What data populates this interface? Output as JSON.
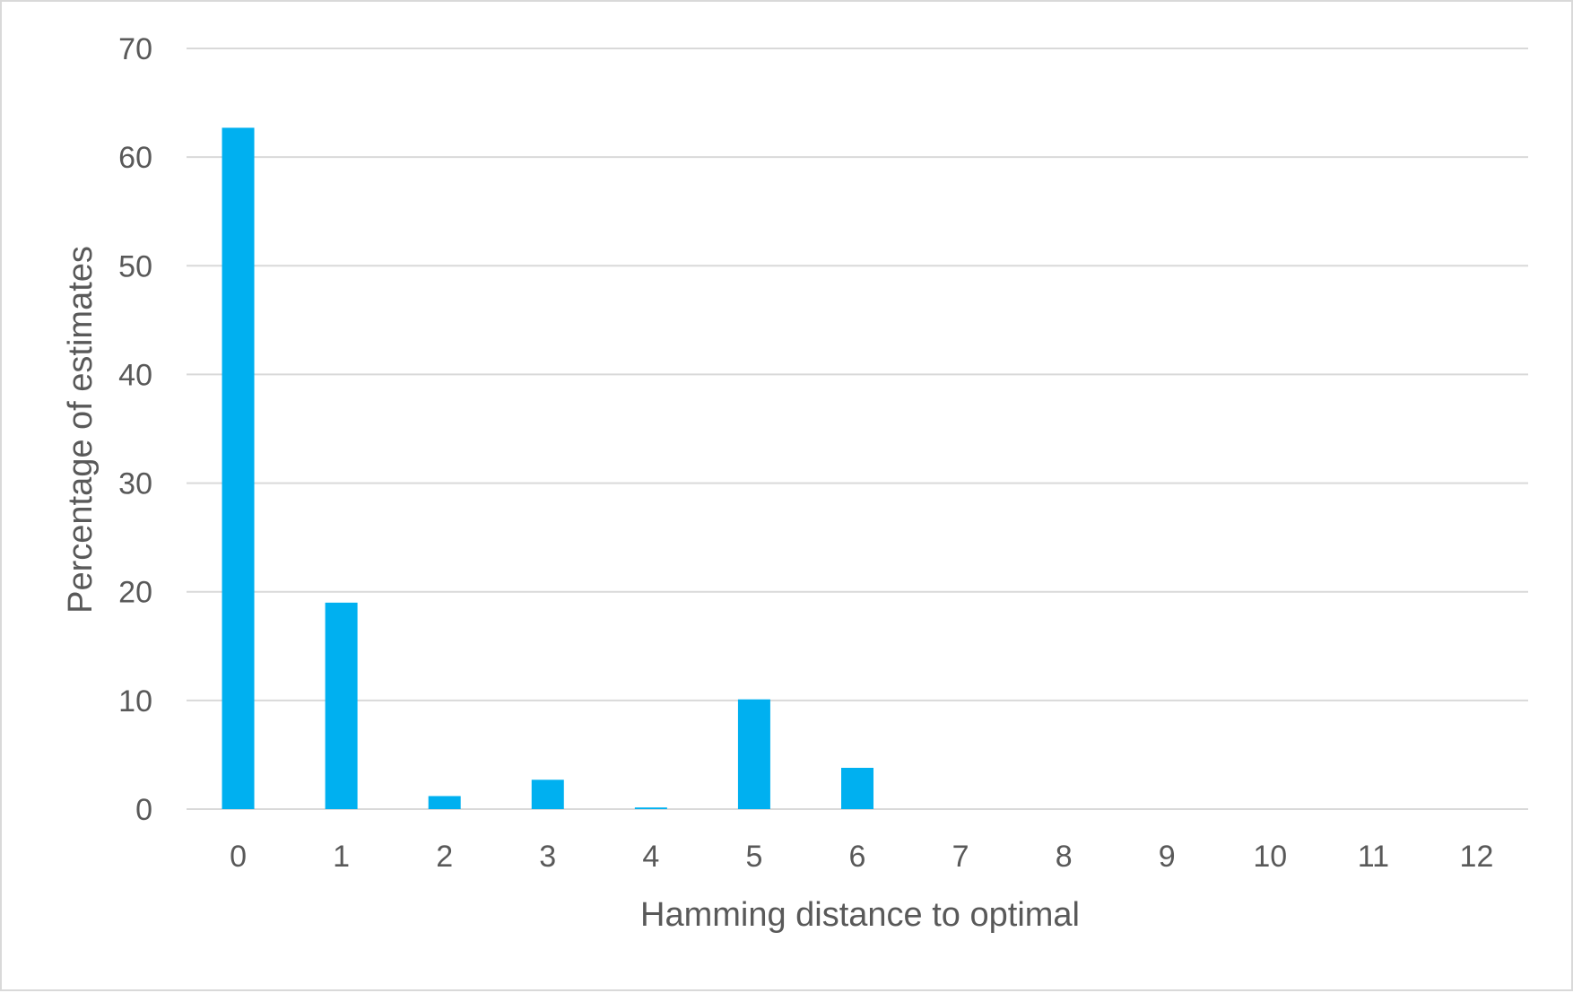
{
  "chart_data": {
    "type": "bar",
    "categories": [
      "0",
      "1",
      "2",
      "3",
      "4",
      "5",
      "6",
      "7",
      "8",
      "9",
      "10",
      "11",
      "12"
    ],
    "series": [
      {
        "values": [
          62.7,
          19.0,
          1.2,
          2.7,
          0.15,
          10.1,
          3.8,
          0,
          0,
          0,
          0,
          0,
          0
        ]
      }
    ],
    "title": "",
    "xlabel": "Hamming distance to optimal",
    "ylabel": "Percentage of estimates",
    "ylim": [
      0,
      70
    ],
    "yticks": [
      "0",
      "10",
      "20",
      "30",
      "40",
      "50",
      "60",
      "70"
    ],
    "grid": true,
    "legend": "none",
    "bar_color": "#00b0f0",
    "grid_color": "#d9d9d9",
    "text_color": "#595959"
  }
}
